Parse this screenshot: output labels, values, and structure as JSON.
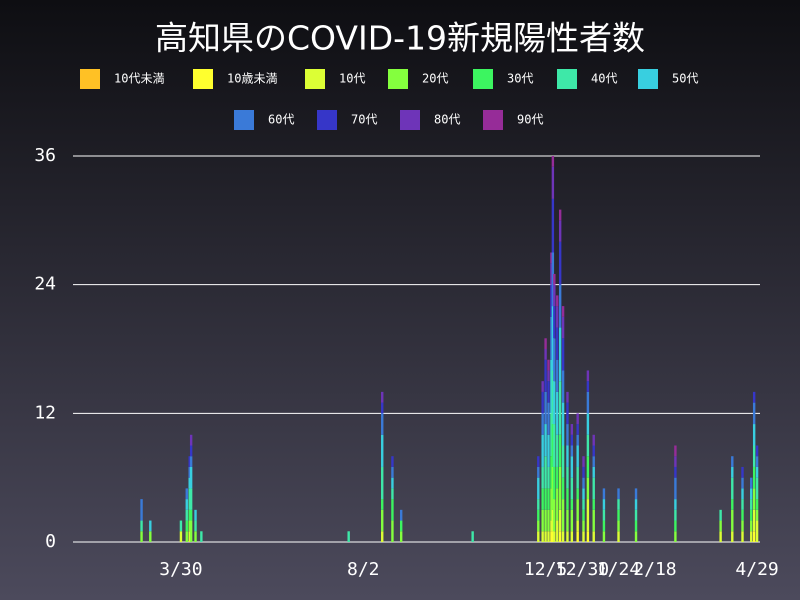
{
  "chart_data": {
    "type": "bar",
    "stacked": true,
    "title": "高知県のCOVID-19新規陽性者数",
    "x": [
      -27,
      -21,
      0,
      4,
      6,
      7,
      10,
      14,
      115,
      138,
      145,
      151,
      200,
      245,
      248,
      250,
      252,
      254,
      255,
      256,
      258,
      260,
      262,
      265,
      268,
      272,
      276,
      279,
      283,
      290,
      300,
      312,
      339,
      370,
      378,
      385,
      391,
      393,
      395
    ],
    "xlim": [
      -74,
      397
    ],
    "xticks": [
      {
        "value": 0,
        "label": "3/30"
      },
      {
        "value": 125,
        "label": "8/2"
      },
      {
        "value": 250,
        "label": "12/5"
      },
      {
        "value": 275,
        "label": "12/30"
      },
      {
        "value": 300,
        "label": "1/24"
      },
      {
        "value": 325,
        "label": "2/18"
      },
      {
        "value": 395,
        "label": "4/29"
      }
    ],
    "ylim": [
      0,
      36
    ],
    "yticks": [
      0,
      12,
      24,
      36
    ],
    "grid": true,
    "series": [
      {
        "name": "10代未満",
        "color": "#ffc125",
        "values": [
          0,
          0,
          0,
          0,
          0,
          0,
          0,
          0,
          0,
          0,
          0,
          0,
          0,
          0,
          0,
          0,
          0,
          0,
          0,
          0,
          0,
          0,
          0,
          0,
          0,
          0,
          0,
          0,
          0,
          0,
          0,
          0,
          0,
          0,
          0,
          0,
          0,
          0,
          0
        ]
      },
      {
        "name": "10歳未満",
        "color": "#ffff2e",
        "values": [
          0,
          0,
          0,
          0,
          0,
          0,
          0,
          0,
          0,
          0,
          0,
          0,
          0,
          0,
          0,
          0,
          0,
          1,
          1,
          0,
          0,
          1,
          0,
          0,
          0,
          1,
          0,
          1,
          0,
          0,
          0,
          0,
          0,
          0,
          0,
          0,
          0,
          1,
          0
        ]
      },
      {
        "name": "10代",
        "color": "#dcff35",
        "values": [
          0,
          0,
          1,
          0,
          1,
          0,
          0,
          0,
          0,
          1,
          0,
          0,
          0,
          1,
          1,
          1,
          1,
          1,
          2,
          1,
          2,
          2,
          1,
          1,
          1,
          1,
          1,
          3,
          1,
          0,
          1,
          0,
          0,
          1,
          1,
          1,
          1,
          2,
          2
        ]
      },
      {
        "name": "20代",
        "color": "#84ff3e",
        "values": [
          1,
          1,
          0,
          1,
          1,
          2,
          1,
          0,
          0,
          2,
          2,
          1,
          0,
          1,
          2,
          2,
          2,
          3,
          4,
          3,
          3,
          4,
          3,
          2,
          2,
          2,
          1,
          2,
          2,
          1,
          1,
          1,
          1,
          1,
          2,
          1,
          1,
          2,
          1
        ]
      },
      {
        "name": "30代",
        "color": "#3cf560",
        "values": [
          0,
          0,
          0,
          1,
          1,
          1,
          0,
          0,
          0,
          1,
          2,
          1,
          0,
          1,
          2,
          2,
          2,
          3,
          4,
          3,
          2,
          3,
          2,
          2,
          1,
          1,
          1,
          2,
          1,
          1,
          1,
          1,
          1,
          0,
          1,
          1,
          1,
          2,
          1
        ]
      },
      {
        "name": "40代",
        "color": "#3ee8a8",
        "values": [
          1,
          0,
          1,
          1,
          2,
          2,
          1,
          1,
          1,
          3,
          1,
          0,
          1,
          1,
          2,
          3,
          2,
          4,
          5,
          4,
          3,
          5,
          3,
          2,
          2,
          2,
          1,
          2,
          2,
          1,
          1,
          1,
          1,
          1,
          2,
          1,
          1,
          2,
          2
        ]
      },
      {
        "name": "50代",
        "color": "#38cfe0",
        "values": [
          0,
          1,
          0,
          1,
          1,
          2,
          1,
          0,
          0,
          3,
          1,
          0,
          0,
          2,
          3,
          3,
          3,
          5,
          6,
          4,
          4,
          5,
          4,
          2,
          2,
          2,
          1,
          2,
          1,
          1,
          0,
          1,
          1,
          0,
          1,
          1,
          1,
          2,
          1
        ]
      },
      {
        "name": "60代",
        "color": "#3a7ad8",
        "values": [
          2,
          0,
          0,
          1,
          1,
          1,
          0,
          0,
          0,
          2,
          1,
          1,
          0,
          1,
          2,
          3,
          3,
          4,
          5,
          4,
          3,
          4,
          3,
          2,
          1,
          1,
          1,
          2,
          1,
          1,
          1,
          1,
          2,
          0,
          1,
          1,
          1,
          2,
          1
        ]
      },
      {
        "name": "70代",
        "color": "#3636c8",
        "values": [
          0,
          0,
          0,
          0,
          1,
          1,
          0,
          0,
          0,
          1,
          1,
          0,
          0,
          1,
          2,
          3,
          2,
          3,
          5,
          3,
          3,
          4,
          3,
          2,
          1,
          1,
          1,
          1,
          1,
          0,
          0,
          0,
          1,
          0,
          0,
          1,
          0,
          1,
          1
        ]
      },
      {
        "name": "80代",
        "color": "#6e34b8",
        "values": [
          0,
          0,
          0,
          0,
          0,
          1,
          0,
          0,
          0,
          1,
          0,
          0,
          0,
          0,
          1,
          1,
          1,
          2,
          3,
          2,
          2,
          2,
          2,
          1,
          1,
          1,
          1,
          1,
          1,
          0,
          0,
          0,
          1,
          0,
          0,
          0,
          0,
          0,
          0
        ]
      },
      {
        "name": "90代",
        "color": "#962c98",
        "values": [
          0,
          0,
          0,
          0,
          0,
          0,
          0,
          0,
          0,
          0,
          0,
          0,
          0,
          0,
          0,
          1,
          1,
          1,
          1,
          1,
          1,
          1,
          1,
          0,
          0,
          0,
          0,
          0,
          0,
          0,
          0,
          0,
          1,
          0,
          0,
          0,
          0,
          0,
          0
        ]
      }
    ]
  }
}
